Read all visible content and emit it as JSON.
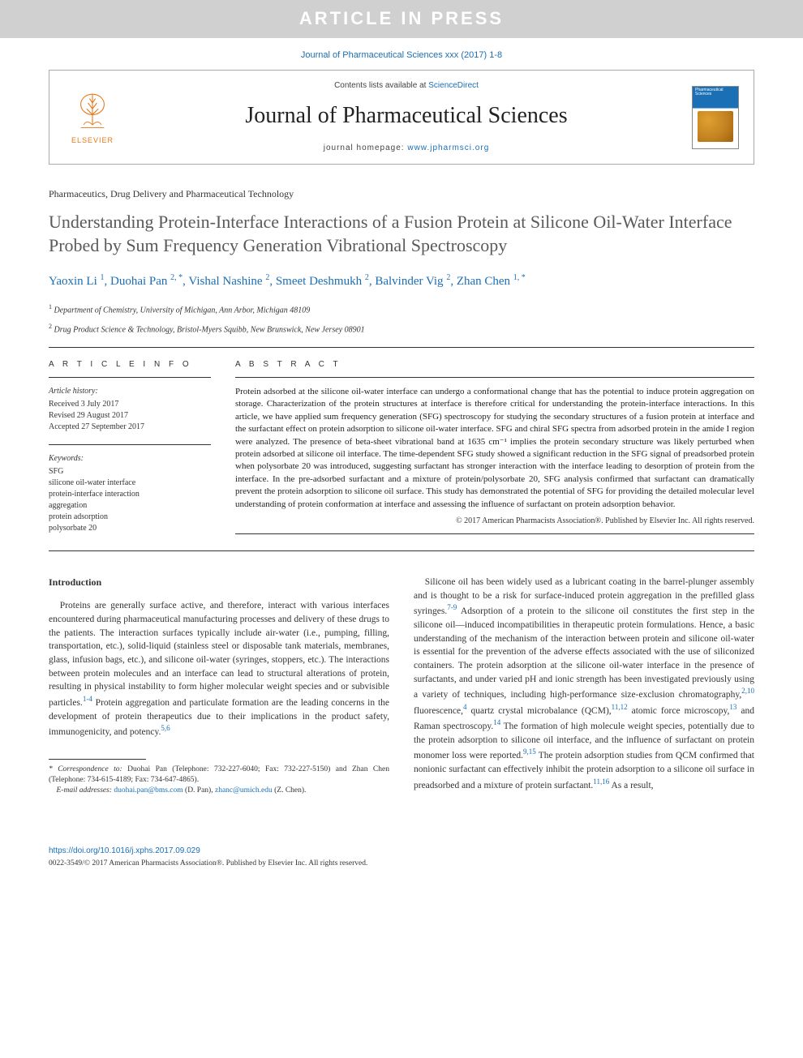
{
  "banner": {
    "text": "ARTICLE IN PRESS"
  },
  "citation": "Journal of Pharmaceutical Sciences xxx (2017) 1-8",
  "header": {
    "publisher_name": "ELSEVIER",
    "contents_prefix": "Contents lists available at ",
    "contents_link": "ScienceDirect",
    "journal_name": "Journal of Pharmaceutical Sciences",
    "home_prefix": "journal homepage: ",
    "home_link": "www.jpharmsci.org",
    "cover_label": "Pharmaceutical Sciences"
  },
  "section_tag": "Pharmaceutics, Drug Delivery and Pharmaceutical Technology",
  "title": "Understanding Protein-Interface Interactions of a Fusion Protein at Silicone Oil-Water Interface Probed by Sum Frequency Generation Vibrational Spectroscopy",
  "authors_html": "Yaoxin Li <sup>1</sup>, Duohai Pan <sup>2, *</sup>, Vishal Nashine <sup>2</sup>, Smeet Deshmukh <sup>2</sup>, Balvinder Vig <sup>2</sup>, Zhan Chen <sup>1, *</sup>",
  "affiliations": [
    {
      "num": "1",
      "text": "Department of Chemistry, University of Michigan, Ann Arbor, Michigan 48109"
    },
    {
      "num": "2",
      "text": "Drug Product Science & Technology, Bristol-Myers Squibb, New Brunswick, New Jersey 08901"
    }
  ],
  "info": {
    "heading": "A R T I C L E   I N F O",
    "history_label": "Article history:",
    "history": [
      "Received 3 July 2017",
      "Revised 29 August 2017",
      "Accepted 27 September 2017"
    ],
    "keywords_label": "Keywords:",
    "keywords": [
      "SFG",
      "silicone oil-water interface",
      "protein-interface interaction",
      "aggregation",
      "protein adsorption",
      "polysorbate 20"
    ]
  },
  "abstract": {
    "heading": "A B S T R A C T",
    "text": "Protein adsorbed at the silicone oil-water interface can undergo a conformational change that has the potential to induce protein aggregation on storage. Characterization of the protein structures at interface is therefore critical for understanding the protein-interface interactions. In this article, we have applied sum frequency generation (SFG) spectroscopy for studying the secondary structures of a fusion protein at interface and the surfactant effect on protein adsorption to silicone oil-water interface. SFG and chiral SFG spectra from adsorbed protein in the amide I region were analyzed. The presence of beta-sheet vibrational band at 1635 cm⁻¹ implies the protein secondary structure was likely perturbed when protein adsorbed at silicone oil interface. The time-dependent SFG study showed a significant reduction in the SFG signal of preadsorbed protein when polysorbate 20 was introduced, suggesting surfactant has stronger interaction with the interface leading to desorption of protein from the interface. In the pre-adsorbed surfactant and a mixture of protein/polysorbate 20, SFG analysis confirmed that surfactant can dramatically prevent the protein adsorption to silicone oil surface. This study has demonstrated the potential of SFG for providing the detailed molecular level understanding of protein conformation at interface and assessing the influence of surfactant on protein adsorption behavior.",
    "copyright": "© 2017 American Pharmacists Association®. Published by Elsevier Inc. All rights reserved."
  },
  "body": {
    "heading": "Introduction",
    "col1_p1": "Proteins are generally surface active, and therefore, interact with various interfaces encountered during pharmaceutical manufacturing processes and delivery of these drugs to the patients. The interaction surfaces typically include air-water (i.e., pumping, filling, transportation, etc.), solid-liquid (stainless steel or disposable tank materials, membranes, glass, infusion bags, etc.), and silicone oil-water (syringes, stoppers, etc.). The interactions between protein molecules and an interface can lead to structural alterations of protein, resulting in physical instability to form higher molecular weight species and or subvisible particles.",
    "col1_ref1": "1-4",
    "col1_p1b": " Protein aggregation and particulate formation are the leading concerns in the development of protein therapeutics due to their implications in the product safety, immunogenicity, and potency.",
    "col1_ref2": "5,6",
    "col2_p1": "Silicone oil has been widely used as a lubricant coating in the barrel-plunger assembly and is thought to be a risk for surface-induced protein aggregation in the prefilled glass syringes.",
    "col2_ref1": "7-9",
    "col2_p1b": " Adsorption of a protein to the silicone oil constitutes the first step in the silicone oil—induced incompatibilities in therapeutic protein formulations. Hence, a basic understanding of the mechanism of the interaction between protein and silicone oil-water is essential for the prevention of the adverse effects associated with the use of siliconized containers. The protein adsorption at the silicone oil-water interface in the presence of surfactants, and under varied pH and ionic strength has been investigated previously using a variety of techniques, including high-performance size-exclusion chromatography,",
    "col2_ref2": "2,10",
    "col2_p1c": " fluorescence,",
    "col2_ref3": "4",
    "col2_p1d": " quartz crystal microbalance (QCM),",
    "col2_ref4": "11,12",
    "col2_p1e": " atomic force microscopy,",
    "col2_ref5": "13",
    "col2_p1f": " and Raman spectroscopy.",
    "col2_ref6": "14",
    "col2_p1g": " The formation of high molecule weight species, potentially due to the protein adsorption to silicone oil interface, and the influence of surfactant on protein monomer loss were reported.",
    "col2_ref7": "9,15",
    "col2_p1h": " The protein adsorption studies from QCM confirmed that nonionic surfactant can effectively inhibit the protein adsorption to a silicone oil surface in preadsorbed and a mixture of protein surfactant.",
    "col2_ref8": "11,16",
    "col2_p1i": " As a result,"
  },
  "correspondence": {
    "label": "* Correspondence to:",
    "text": " Duohai Pan (Telephone: 732-227-6040; Fax: 732-227-5150) and Zhan Chen (Telephone: 734-615-4189; Fax: 734-647-4865).",
    "email_label": "E-mail addresses: ",
    "email1": "duohai.pan@bms.com",
    "email1_who": " (D. Pan), ",
    "email2": "zhanc@umich.edu",
    "email2_who": " (Z. Chen)."
  },
  "footer": {
    "doi": "https://doi.org/10.1016/j.xphs.2017.09.029",
    "issn": "0022-3549/© 2017 American Pharmacists Association®. Published by Elsevier Inc. All rights reserved."
  },
  "colors": {
    "link": "#1a6fb5",
    "banner_bg": "#d0d0d0",
    "elsevier_orange": "#e67817",
    "text": "#333333",
    "title_gray": "#5a5a5a"
  }
}
